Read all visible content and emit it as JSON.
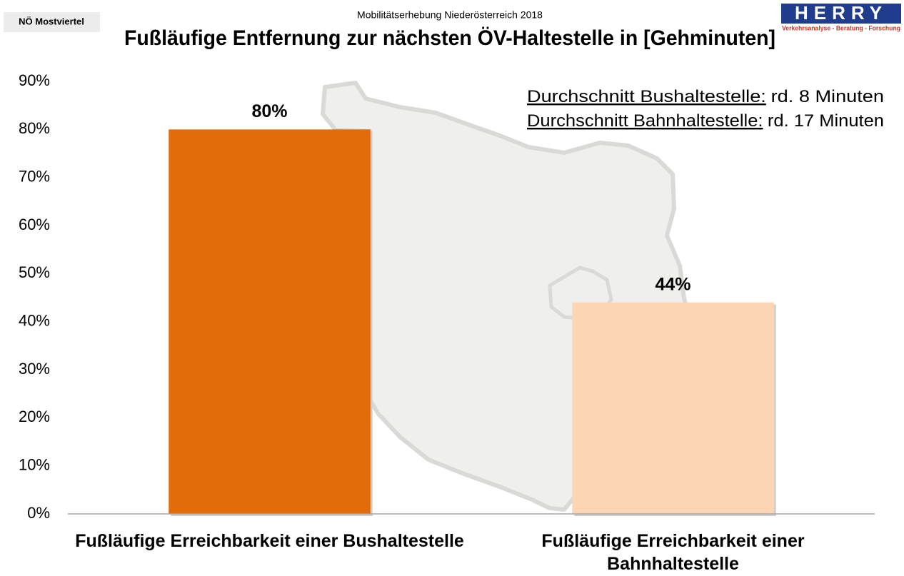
{
  "chart_data": {
    "type": "bar",
    "badge": "NÖ Mostviertel",
    "subtitle": "Mobilitätserhebung Niederösterreich 2018",
    "title": "Fußläufige Entfernung zur nächsten ÖV-Haltestelle in [Gehminuten]",
    "logo": {
      "name": "HERRY",
      "tagline": "Verkehrsanalyse - Beratung - Forschung"
    },
    "annotations": [
      {
        "label": "Durchschnitt Bushaltestelle:",
        "text": "rd. 8 Minuten"
      },
      {
        "label": "Durchschnitt Bahnhaltestelle:",
        "text": "rd. 17 Minuten"
      }
    ],
    "categories": [
      "Fußläufige Erreichbarkeit einer Bushaltestelle",
      "Fußläufige Erreichbarkeit einer Bahnhaltestelle"
    ],
    "values": [
      80,
      44
    ],
    "value_labels": [
      "80%",
      "44%"
    ],
    "colors": [
      "#e36c0a",
      "#fcd5b5"
    ],
    "ylim": [
      0,
      90
    ],
    "yticks": [
      {
        "value": 0,
        "label": "0%"
      },
      {
        "value": 10,
        "label": "10%"
      },
      {
        "value": 20,
        "label": "20%"
      },
      {
        "value": 30,
        "label": "30%"
      },
      {
        "value": 40,
        "label": "40%"
      },
      {
        "value": 50,
        "label": "50%"
      },
      {
        "value": 60,
        "label": "60%"
      },
      {
        "value": 70,
        "label": "70%"
      },
      {
        "value": 80,
        "label": "80%"
      },
      {
        "value": 90,
        "label": "90%"
      }
    ],
    "grid": false
  }
}
